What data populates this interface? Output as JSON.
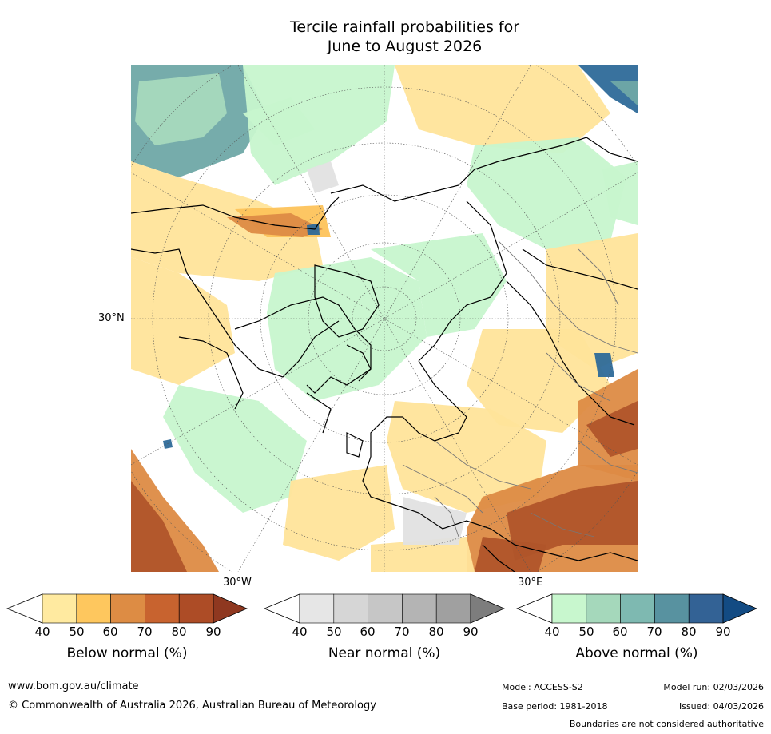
{
  "title": {
    "line1": "Tercile rainfall probabilities for",
    "line2": "June to August 2026"
  },
  "map": {
    "projection": "north-polar-stereographic",
    "lat_label": "30°N",
    "lon_labels": {
      "west": "30°W",
      "east": "30°E"
    },
    "fill_colors": {
      "above_light": "#c7f5cd",
      "above_mid": "#a6d9bd",
      "above_teal": "#6fa8a7",
      "above_dark": "#2e6a99",
      "below_light": "#ffe49a",
      "below_mid": "#fdc35b",
      "below_orange": "#dd8b45",
      "below_brown": "#b0552a",
      "near_light": "#e2e2e2"
    }
  },
  "colorbars": [
    {
      "id": "below",
      "label": "Below normal (%)",
      "ticks": [
        "40",
        "50",
        "60",
        "70",
        "80",
        "90"
      ],
      "colors": [
        "#ffffff",
        "#ffeaa0",
        "#fec75e",
        "#dd8c44",
        "#c8632f",
        "#ad4c26",
        "#8f3820"
      ]
    },
    {
      "id": "near",
      "label": "Near normal (%)",
      "ticks": [
        "40",
        "50",
        "60",
        "70",
        "80",
        "90"
      ],
      "colors": [
        "#ffffff",
        "#e6e6e6",
        "#d6d6d6",
        "#c6c6c6",
        "#b4b4b4",
        "#a0a0a0",
        "#7d7d7d"
      ]
    },
    {
      "id": "above",
      "label": "Above normal (%)",
      "ticks": [
        "40",
        "50",
        "60",
        "70",
        "80",
        "90"
      ],
      "colors": [
        "#ffffff",
        "#c8f7ce",
        "#a5d8bb",
        "#7eb9b1",
        "#5892a0",
        "#336295",
        "#134b83"
      ]
    }
  ],
  "footer": {
    "website": "www.bom.gov.au/climate",
    "copyright": "© Commonwealth of Australia 2026, Australian Bureau of Meteorology",
    "model": "Model: ACCESS-S2",
    "model_run": "Model run: 02/03/2026",
    "base_period": "Base period: 1981-2018",
    "issued": "Issued: 04/03/2026",
    "disclaimer": "Boundaries are not considered authoritative"
  }
}
